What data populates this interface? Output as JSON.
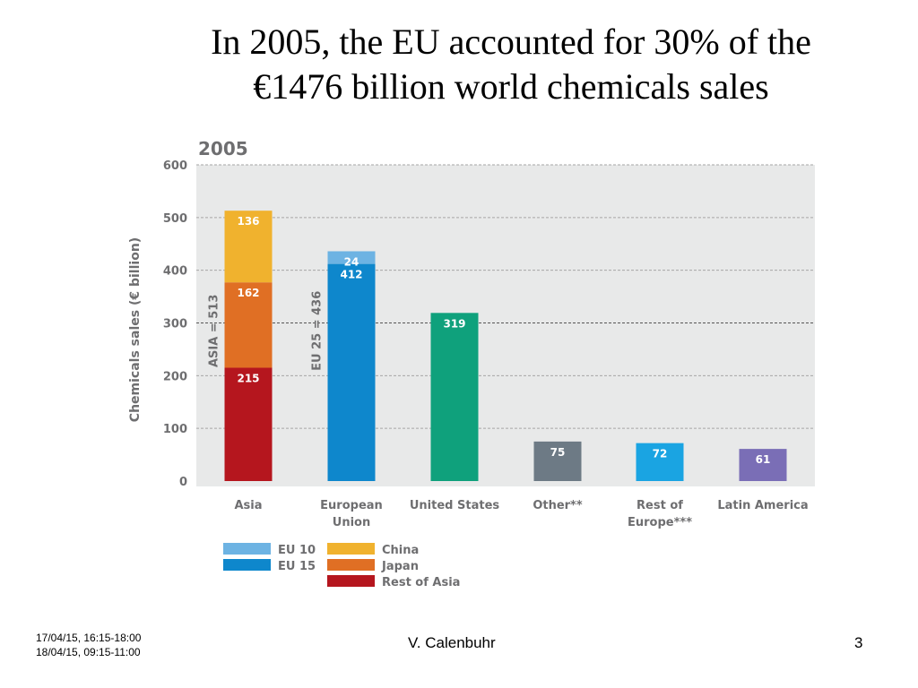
{
  "slide": {
    "title_line1": "In 2005, the EU accounted for 30% of the",
    "title_line2": "€1476 billion world chemicals sales",
    "date_line1": "17/04/15, 16:15-18:00",
    "date_line2": "18/04/15, 09:15-11:00",
    "author": "V. Calenbuhr",
    "page_number": "3"
  },
  "chart_data": {
    "type": "bar",
    "title": "2005",
    "ylabel": "Chemicals sales (€ billion)",
    "ylim": [
      0,
      600
    ],
    "yticks": [
      0,
      100,
      200,
      300,
      400,
      500,
      600
    ],
    "categories": [
      {
        "label": "Asia",
        "label2": ""
      },
      {
        "label": "European",
        "label2": "Union"
      },
      {
        "label": "United States",
        "label2": ""
      },
      {
        "label": "Other**",
        "label2": ""
      },
      {
        "label": "Rest of",
        "label2": "Europe***"
      },
      {
        "label": "Latin America",
        "label2": ""
      }
    ],
    "bars": [
      {
        "category": 0,
        "segments": [
          {
            "name": "Rest of Asia",
            "value": 215,
            "label": "215",
            "color": "#b5161e"
          },
          {
            "name": "Japan",
            "value": 162,
            "label": "162",
            "color": "#e06f24"
          },
          {
            "name": "China",
            "value": 136,
            "label": "136",
            "color": "#f0b22e"
          }
        ]
      },
      {
        "category": 1,
        "segments": [
          {
            "name": "EU 15",
            "value": 412,
            "label": "412",
            "color": "#0e87cc"
          },
          {
            "name": "EU 10",
            "value": 24,
            "label": "24",
            "color": "#6db3e3"
          }
        ]
      },
      {
        "category": 2,
        "segments": [
          {
            "name": "United States",
            "value": 319,
            "label": "319",
            "color": "#0fa17c"
          }
        ]
      },
      {
        "category": 3,
        "segments": [
          {
            "name": "Other",
            "value": 75,
            "label": "75",
            "color": "#6d7a85"
          }
        ]
      },
      {
        "category": 4,
        "segments": [
          {
            "name": "Rest of Europe",
            "value": 72,
            "label": "72",
            "color": "#1aa4e2"
          }
        ]
      },
      {
        "category": 5,
        "segments": [
          {
            "name": "Latin America",
            "value": 61,
            "label": "61",
            "color": "#7a6eb6"
          }
        ]
      }
    ],
    "annotations": [
      {
        "category": 0,
        "text": "ASIA = 513",
        "value": 513
      },
      {
        "category": 1,
        "text": "EU 25 = 436",
        "value": 436
      }
    ],
    "legend": [
      {
        "name": "EU 10",
        "color": "#6db3e3"
      },
      {
        "name": "EU 15",
        "color": "#0e87cc"
      },
      {
        "name": "China",
        "color": "#f0b22e"
      },
      {
        "name": "Japan",
        "color": "#e06f24"
      },
      {
        "name": "Rest of Asia",
        "color": "#b5161e"
      }
    ],
    "colors": {
      "plot_bg": "#e8e9e9",
      "text": "#6e6e70",
      "grid": "#a6a6a6",
      "ref_line": "#555555"
    }
  }
}
